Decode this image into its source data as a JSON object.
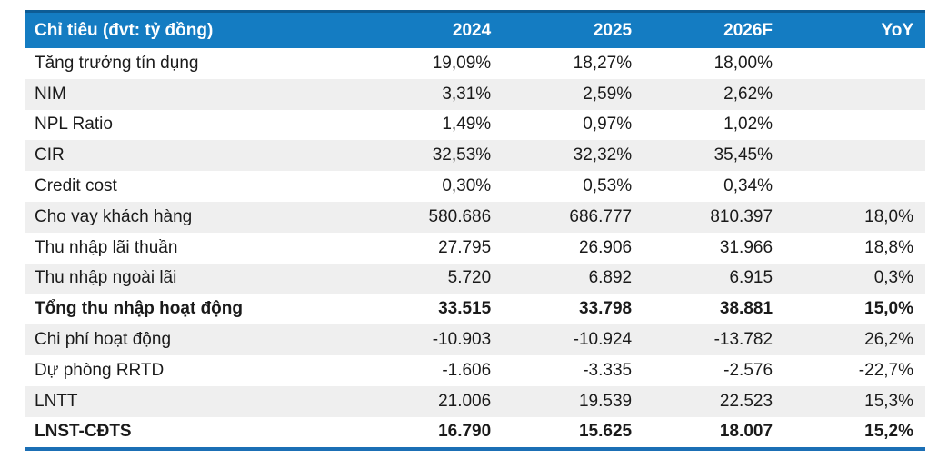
{
  "colors": {
    "header_bg": "#147CC2",
    "header_text": "#FFFFFF",
    "row_bg": "#FFFFFF",
    "row_alt_bg": "#EFEFEF",
    "top_border": "#0E5C95",
    "bottom_border": "#1B6FB5",
    "body_text": "#1A1A1A"
  },
  "chart_data": {
    "type": "table",
    "columns": [
      "Chỉ tiêu (đvt: tỷ đồng)",
      "2024",
      "2025",
      "2026F",
      "YoY"
    ],
    "rows": [
      {
        "label": "Tăng trưởng tín dụng",
        "values": [
          "19,09%",
          "18,27%",
          "18,00%",
          ""
        ],
        "bold": false
      },
      {
        "label": "NIM",
        "values": [
          "3,31%",
          "2,59%",
          "2,62%",
          ""
        ],
        "bold": false
      },
      {
        "label": "NPL Ratio",
        "values": [
          "1,49%",
          "0,97%",
          "1,02%",
          ""
        ],
        "bold": false
      },
      {
        "label": "CIR",
        "values": [
          "32,53%",
          "32,32%",
          "35,45%",
          ""
        ],
        "bold": false
      },
      {
        "label": "Credit cost",
        "values": [
          "0,30%",
          "0,53%",
          "0,34%",
          ""
        ],
        "bold": false
      },
      {
        "label": "Cho vay khách hàng",
        "values": [
          "580.686",
          "686.777",
          "810.397",
          "18,0%"
        ],
        "bold": false
      },
      {
        "label": "Thu nhập lãi thuần",
        "values": [
          "27.795",
          "26.906",
          "31.966",
          "18,8%"
        ],
        "bold": false
      },
      {
        "label": "Thu nhập ngoài lãi",
        "values": [
          "5.720",
          "6.892",
          "6.915",
          "0,3%"
        ],
        "bold": false
      },
      {
        "label": "Tổng thu nhập hoạt động",
        "values": [
          "33.515",
          "33.798",
          "38.881",
          "15,0%"
        ],
        "bold": true
      },
      {
        "label": "Chi phí hoạt động",
        "values": [
          "-10.903",
          "-10.924",
          "-13.782",
          "26,2%"
        ],
        "bold": false
      },
      {
        "label": "Dự phòng RRTD",
        "values": [
          "-1.606",
          "-3.335",
          "-2.576",
          "-22,7%"
        ],
        "bold": false
      },
      {
        "label": "LNTT",
        "values": [
          "21.006",
          "19.539",
          "22.523",
          "15,3%"
        ],
        "bold": false
      },
      {
        "label": "LNST-CĐTS",
        "values": [
          "16.790",
          "15.625",
          "18.007",
          "15,2%"
        ],
        "bold": true
      }
    ]
  }
}
